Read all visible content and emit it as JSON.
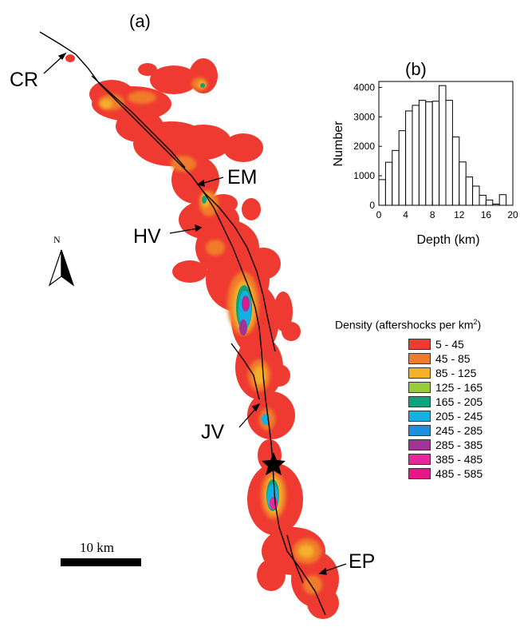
{
  "panels": {
    "a": "(a)",
    "b": "(b)"
  },
  "places": {
    "cr": "CR",
    "em": "EM",
    "hv": "HV",
    "jv": "JV",
    "ep": "EP"
  },
  "north": "N",
  "scale_label": "10 km",
  "legend": {
    "title": "Density (aftershocks per km",
    "title_sup": "2",
    "title_end": ")",
    "items": [
      {
        "range": "5 - 45",
        "color": "#ee3a30"
      },
      {
        "range": "45 - 85",
        "color": "#f07c2a"
      },
      {
        "range": "85 - 125",
        "color": "#f5b02a"
      },
      {
        "range": "125 - 165",
        "color": "#9acb3c"
      },
      {
        "range": "165 - 205",
        "color": "#10a27a"
      },
      {
        "range": "205 - 245",
        "color": "#13b1e3"
      },
      {
        "range": "245 - 285",
        "color": "#1c8fe0"
      },
      {
        "range": "285 - 385",
        "color": "#a03496"
      },
      {
        "range": "385 - 485",
        "color": "#e5289a"
      },
      {
        "range": "485 - 585",
        "color": "#e9168a"
      }
    ]
  },
  "chart_data": {
    "type": "bar",
    "title": "",
    "xlabel": "Depth (km)",
    "ylabel": "Number",
    "xlim": [
      0,
      20
    ],
    "ylim": [
      0,
      4200
    ],
    "x_ticks": [
      "0",
      "4",
      "8",
      "12",
      "16",
      "20"
    ],
    "y_ticks": [
      "0",
      "1000",
      "2000",
      "3000",
      "4000"
    ],
    "bin_width_km": 1,
    "bin_starts": [
      0,
      1,
      2,
      3,
      4,
      5,
      6,
      7,
      8,
      9,
      10,
      11,
      12,
      13,
      14,
      15,
      16,
      17,
      18
    ],
    "values": [
      870,
      1460,
      1860,
      2530,
      3200,
      3390,
      3560,
      3510,
      3530,
      4060,
      3560,
      2320,
      1470,
      960,
      650,
      340,
      180,
      40,
      360
    ]
  }
}
